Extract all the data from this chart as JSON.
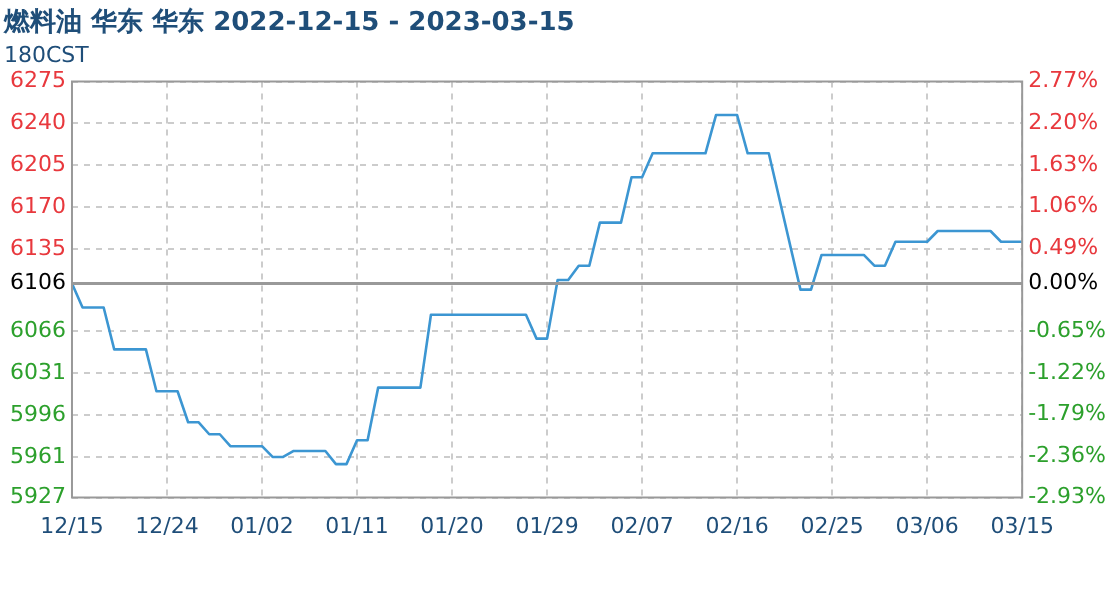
{
  "chart_data": {
    "type": "line",
    "title": "燃料油 华东 华东 2022-12-15 - 2023-03-15",
    "subtitle": "180CST",
    "x": [
      "2022-12-15",
      "2022-12-16",
      "2022-12-18",
      "2022-12-19",
      "2022-12-22",
      "2022-12-23",
      "2022-12-25",
      "2022-12-26",
      "2022-12-27",
      "2022-12-28",
      "2022-12-29",
      "2022-12-30",
      "2023-01-02",
      "2023-01-03",
      "2023-01-04",
      "2023-01-05",
      "2023-01-08",
      "2023-01-09",
      "2023-01-10",
      "2023-01-11",
      "2023-01-12",
      "2023-01-13",
      "2023-01-17",
      "2023-01-18",
      "2023-01-27",
      "2023-01-28",
      "2023-01-29",
      "2023-01-30",
      "2023-01-31",
      "2023-02-01",
      "2023-02-02",
      "2023-02-03",
      "2023-02-05",
      "2023-02-06",
      "2023-02-07",
      "2023-02-08",
      "2023-02-13",
      "2023-02-14",
      "2023-02-16",
      "2023-02-17",
      "2023-02-19",
      "2023-02-22",
      "2023-02-23",
      "2023-02-24",
      "2023-02-28",
      "2023-03-01",
      "2023-03-02",
      "2023-03-03",
      "2023-03-06",
      "2023-03-07",
      "2023-03-12",
      "2023-03-13",
      "2023-03-15"
    ],
    "series": [
      {
        "color": "#3c96d2",
        "values": [
          6106,
          6086,
          6086,
          6051,
          6051,
          6016,
          6016,
          5990,
          5990,
          5980,
          5980,
          5970,
          5970,
          5961,
          5961,
          5966,
          5966,
          5955,
          5955,
          5975,
          5975,
          6019,
          6019,
          6080,
          6080,
          6060,
          6060,
          6109,
          6109,
          6121,
          6121,
          6157,
          6157,
          6195,
          6195,
          6215,
          6215,
          6247,
          6247,
          6215,
          6215,
          6101,
          6101,
          6130,
          6130,
          6121,
          6121,
          6141,
          6141,
          6150,
          6150,
          6141,
          6141
        ]
      }
    ],
    "xlim": [
      "2022-12-15",
      "2023-03-15"
    ],
    "xticks": [
      {
        "value": "2022-12-15",
        "label": "12/15"
      },
      {
        "value": "2022-12-24",
        "label": "12/24"
      },
      {
        "value": "2023-01-02",
        "label": "01/02"
      },
      {
        "value": "2023-01-11",
        "label": "01/11"
      },
      {
        "value": "2023-01-20",
        "label": "01/20"
      },
      {
        "value": "2023-01-29",
        "label": "01/29"
      },
      {
        "value": "2023-02-07",
        "label": "02/07"
      },
      {
        "value": "2023-02-16",
        "label": "02/16"
      },
      {
        "value": "2023-02-25",
        "label": "02/25"
      },
      {
        "value": "2023-03-06",
        "label": "03/06"
      },
      {
        "value": "2023-03-15",
        "label": "03/15"
      }
    ],
    "ylim": [
      5927,
      6275
    ],
    "yticks": [
      5927,
      5961,
      5996,
      6031,
      6066,
      6106,
      6135,
      6170,
      6205,
      6240,
      6275
    ],
    "y2lim": [
      -2.93,
      2.77
    ],
    "y2ticks": [
      {
        "value": -2.93,
        "label": "-2.93%"
      },
      {
        "value": -2.36,
        "label": "-2.36%"
      },
      {
        "value": -1.79,
        "label": "-1.79%"
      },
      {
        "value": -1.22,
        "label": "-1.22%"
      },
      {
        "value": -0.65,
        "label": "-0.65%"
      },
      {
        "value": 0,
        "label": "0.00%"
      },
      {
        "value": 0.49,
        "label": "0.49%"
      },
      {
        "value": 1.06,
        "label": "1.06%"
      },
      {
        "value": 1.63,
        "label": "1.63%"
      },
      {
        "value": 2.2,
        "label": "2.20%"
      },
      {
        "value": 2.77,
        "label": "2.77%"
      }
    ],
    "ref_lines": [
      {
        "axis": "y",
        "value": 6106,
        "color": "#999999"
      }
    ],
    "grid": true,
    "legend": false,
    "marker": "none",
    "line_style": "solid"
  }
}
